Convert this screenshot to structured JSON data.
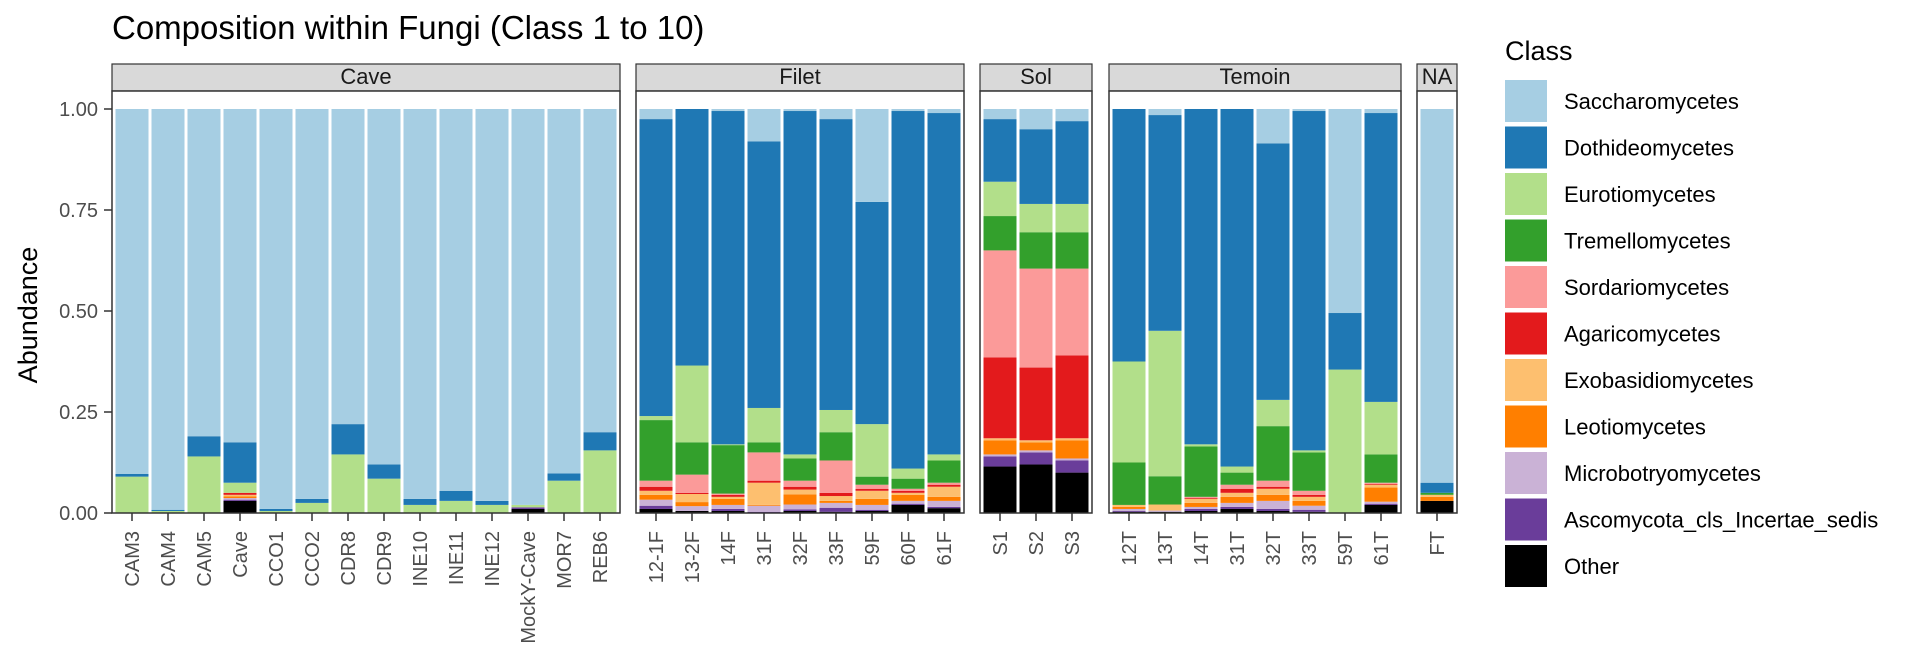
{
  "chart_data": {
    "type": "bar",
    "stacked": true,
    "title": "Composition within Fungi (Class 1 to 10)",
    "xlabel": "",
    "ylabel": "Abundance",
    "ylim": [
      0,
      1.05
    ],
    "yticks": [
      0,
      0.25,
      0.5,
      0.75,
      1.0
    ],
    "ytick_labels": [
      "0.00",
      "0.25",
      "0.50",
      "0.75",
      "1.00"
    ],
    "grid": false,
    "legend": {
      "title": "Class",
      "position": "right",
      "entries": [
        {
          "name": "Saccharomycetes",
          "color": "#a6cee3"
        },
        {
          "name": "Dothideomycetes",
          "color": "#1f78b4"
        },
        {
          "name": "Eurotiomycetes",
          "color": "#b2df8a"
        },
        {
          "name": "Tremellomycetes",
          "color": "#33a02c"
        },
        {
          "name": "Sordariomycetes",
          "color": "#fb9a99"
        },
        {
          "name": "Agaricomycetes",
          "color": "#e31a1c"
        },
        {
          "name": "Exobasidiomycetes",
          "color": "#fdbf6f"
        },
        {
          "name": "Leotiomycetes",
          "color": "#ff7f00"
        },
        {
          "name": "Microbotryomycetes",
          "color": "#cab2d6"
        },
        {
          "name": "Ascomycota_cls_Incertae_sedis",
          "color": "#6a3d9a"
        },
        {
          "name": "Other",
          "color": "#000000"
        }
      ]
    },
    "stack_order_bottom_to_top": [
      "Other",
      "Ascomycota_cls_Incertae_sedis",
      "Microbotryomycetes",
      "Leotiomycetes",
      "Exobasidiomycetes",
      "Agaricomycetes",
      "Sordariomycetes",
      "Tremellomycetes",
      "Eurotiomycetes",
      "Dothideomycetes",
      "Saccharomycetes"
    ],
    "facets": [
      {
        "name": "Cave",
        "samples": [
          {
            "label": "CAM3",
            "values": {
              "Other": 0.0,
              "Eurotiomycetes": 0.09,
              "Dothideomycetes": 0.007,
              "Saccharomycetes": 0.903
            }
          },
          {
            "label": "CAM4",
            "values": {
              "Other": 0.0,
              "Eurotiomycetes": 0.005,
              "Dothideomycetes": 0.003,
              "Saccharomycetes": 0.992
            }
          },
          {
            "label": "CAM5",
            "values": {
              "Other": 0.0,
              "Eurotiomycetes": 0.14,
              "Dothideomycetes": 0.05,
              "Saccharomycetes": 0.81
            }
          },
          {
            "label": "Cave",
            "values": {
              "Other": 0.03,
              "Ascomycota_cls_Incertae_sedis": 0.003,
              "Microbotryomycetes": 0.004,
              "Leotiomycetes": 0.004,
              "Exobasidiomycetes": 0.004,
              "Agaricomycetes": 0.005,
              "Eurotiomycetes": 0.025,
              "Dothideomycetes": 0.1,
              "Saccharomycetes": 0.825
            }
          },
          {
            "label": "CCO1",
            "values": {
              "Eurotiomycetes": 0.005,
              "Dothideomycetes": 0.005,
              "Saccharomycetes": 0.99
            }
          },
          {
            "label": "CCO2",
            "values": {
              "Eurotiomycetes": 0.025,
              "Dothideomycetes": 0.01,
              "Saccharomycetes": 0.965
            }
          },
          {
            "label": "CDR8",
            "values": {
              "Eurotiomycetes": 0.145,
              "Dothideomycetes": 0.075,
              "Saccharomycetes": 0.78
            }
          },
          {
            "label": "CDR9",
            "values": {
              "Eurotiomycetes": 0.085,
              "Dothideomycetes": 0.035,
              "Saccharomycetes": 0.88
            }
          },
          {
            "label": "INE10",
            "values": {
              "Eurotiomycetes": 0.02,
              "Dothideomycetes": 0.015,
              "Saccharomycetes": 0.965
            }
          },
          {
            "label": "INE11",
            "values": {
              "Eurotiomycetes": 0.03,
              "Dothideomycetes": 0.025,
              "Saccharomycetes": 0.945
            }
          },
          {
            "label": "INE12",
            "values": {
              "Eurotiomycetes": 0.02,
              "Dothideomycetes": 0.01,
              "Saccharomycetes": 0.97
            }
          },
          {
            "label": "MockY-Cave",
            "values": {
              "Other": 0.01,
              "Ascomycota_cls_Incertae_sedis": 0.004,
              "Eurotiomycetes": 0.006,
              "Saccharomycetes": 0.98
            }
          },
          {
            "label": "MOR7",
            "values": {
              "Eurotiomycetes": 0.08,
              "Dothideomycetes": 0.018,
              "Saccharomycetes": 0.902
            }
          },
          {
            "label": "REB6",
            "values": {
              "Eurotiomycetes": 0.155,
              "Dothideomycetes": 0.045,
              "Saccharomycetes": 0.8
            }
          }
        ]
      },
      {
        "name": "Filet",
        "samples": [
          {
            "label": "12-1F",
            "values": {
              "Other": 0.01,
              "Ascomycota_cls_Incertae_sedis": 0.008,
              "Microbotryomycetes": 0.015,
              "Leotiomycetes": 0.012,
              "Exobasidiomycetes": 0.01,
              "Agaricomycetes": 0.01,
              "Sordariomycetes": 0.015,
              "Tremellomycetes": 0.15,
              "Eurotiomycetes": 0.01,
              "Dothideomycetes": 0.735,
              "Saccharomycetes": 0.025
            }
          },
          {
            "label": "13-2F",
            "values": {
              "Other": 0.005,
              "Microbotryomycetes": 0.012,
              "Leotiomycetes": 0.01,
              "Exobasidiomycetes": 0.02,
              "Agaricomycetes": 0.003,
              "Sordariomycetes": 0.045,
              "Tremellomycetes": 0.08,
              "Eurotiomycetes": 0.19,
              "Dothideomycetes": 0.635
            }
          },
          {
            "label": "14F",
            "values": {
              "Other": 0.005,
              "Ascomycota_cls_Incertae_sedis": 0.005,
              "Microbotryomycetes": 0.01,
              "Leotiomycetes": 0.015,
              "Exobasidiomycetes": 0.005,
              "Agaricomycetes": 0.005,
              "Sordariomycetes": 0.003,
              "Tremellomycetes": 0.12,
              "Eurotiomycetes": 0.002,
              "Dothideomycetes": 0.825,
              "Saccharomycetes": 0.005
            }
          },
          {
            "label": "31F",
            "values": {
              "Other": 0.0,
              "Ascomycota_cls_Incertae_sedis": 0.003,
              "Microbotryomycetes": 0.015,
              "Leotiomycetes": 0.002,
              "Exobasidiomycetes": 0.055,
              "Agaricomycetes": 0.005,
              "Sordariomycetes": 0.07,
              "Tremellomycetes": 0.025,
              "Eurotiomycetes": 0.085,
              "Dothideomycetes": 0.66,
              "Saccharomycetes": 0.08
            }
          },
          {
            "label": "32F",
            "values": {
              "Other": 0.005,
              "Ascomycota_cls_Incertae_sedis": 0.004,
              "Microbotryomycetes": 0.012,
              "Leotiomycetes": 0.025,
              "Exobasidiomycetes": 0.012,
              "Agaricomycetes": 0.007,
              "Sordariomycetes": 0.015,
              "Tremellomycetes": 0.055,
              "Eurotiomycetes": 0.01,
              "Dothideomycetes": 0.85,
              "Saccharomycetes": 0.005
            }
          },
          {
            "label": "33F",
            "values": {
              "Other": 0.003,
              "Ascomycota_cls_Incertae_sedis": 0.01,
              "Microbotryomycetes": 0.012,
              "Leotiomycetes": 0.005,
              "Exobasidiomycetes": 0.012,
              "Agaricomycetes": 0.008,
              "Sordariomycetes": 0.08,
              "Tremellomycetes": 0.07,
              "Eurotiomycetes": 0.055,
              "Dothideomycetes": 0.72,
              "Saccharomycetes": 0.025
            }
          },
          {
            "label": "59F",
            "values": {
              "Other": 0.005,
              "Ascomycota_cls_Incertae_sedis": 0.003,
              "Microbotryomycetes": 0.012,
              "Leotiomycetes": 0.015,
              "Exobasidiomycetes": 0.02,
              "Agaricomycetes": 0.005,
              "Sordariomycetes": 0.01,
              "Tremellomycetes": 0.02,
              "Eurotiomycetes": 0.13,
              "Dothideomycetes": 0.55,
              "Saccharomycetes": 0.23
            }
          },
          {
            "label": "60F",
            "values": {
              "Other": 0.02,
              "Ascomycota_cls_Incertae_sedis": 0.003,
              "Microbotryomycetes": 0.007,
              "Leotiomycetes": 0.015,
              "Exobasidiomycetes": 0.005,
              "Agaricomycetes": 0.005,
              "Sordariomycetes": 0.005,
              "Tremellomycetes": 0.025,
              "Eurotiomycetes": 0.025,
              "Dothideomycetes": 0.885,
              "Saccharomycetes": 0.005
            }
          },
          {
            "label": "61F",
            "values": {
              "Other": 0.012,
              "Ascomycota_cls_Incertae_sedis": 0.003,
              "Microbotryomycetes": 0.015,
              "Leotiomycetes": 0.01,
              "Exobasidiomycetes": 0.025,
              "Agaricomycetes": 0.005,
              "Sordariomycetes": 0.005,
              "Tremellomycetes": 0.055,
              "Eurotiomycetes": 0.015,
              "Dothideomycetes": 0.845,
              "Saccharomycetes": 0.01
            }
          }
        ]
      },
      {
        "name": "Sol",
        "samples": [
          {
            "label": "S1",
            "values": {
              "Other": 0.115,
              "Ascomycota_cls_Incertae_sedis": 0.025,
              "Microbotryomycetes": 0.005,
              "Leotiomycetes": 0.035,
              "Exobasidiomycetes": 0.005,
              "Agaricomycetes": 0.2,
              "Sordariomycetes": 0.265,
              "Tremellomycetes": 0.085,
              "Eurotiomycetes": 0.085,
              "Dothideomycetes": 0.155,
              "Saccharomycetes": 0.025
            }
          },
          {
            "label": "S2",
            "values": {
              "Other": 0.12,
              "Ascomycota_cls_Incertae_sedis": 0.03,
              "Microbotryomycetes": 0.005,
              "Leotiomycetes": 0.02,
              "Exobasidiomycetes": 0.005,
              "Agaricomycetes": 0.18,
              "Sordariomycetes": 0.245,
              "Tremellomycetes": 0.09,
              "Eurotiomycetes": 0.07,
              "Dothideomycetes": 0.185,
              "Saccharomycetes": 0.05
            }
          },
          {
            "label": "S3",
            "values": {
              "Other": 0.1,
              "Ascomycota_cls_Incertae_sedis": 0.03,
              "Microbotryomycetes": 0.005,
              "Leotiomycetes": 0.045,
              "Exobasidiomycetes": 0.005,
              "Agaricomycetes": 0.205,
              "Sordariomycetes": 0.215,
              "Tremellomycetes": 0.09,
              "Eurotiomycetes": 0.07,
              "Dothideomycetes": 0.205,
              "Saccharomycetes": 0.03
            }
          }
        ]
      },
      {
        "name": "Temoin",
        "samples": [
          {
            "label": "12T",
            "values": {
              "Other": 0.003,
              "Ascomycota_cls_Incertae_sedis": 0.002,
              "Microbotryomycetes": 0.005,
              "Leotiomycetes": 0.005,
              "Exobasidiomycetes": 0.005,
              "Tremellomycetes": 0.105,
              "Eurotiomycetes": 0.25,
              "Dothideomycetes": 0.625
            }
          },
          {
            "label": "13T",
            "values": {
              "Other": 0.003,
              "Microbotryomycetes": 0.003,
              "Exobasidiomycetes": 0.015,
              "Tremellomycetes": 0.07,
              "Eurotiomycetes": 0.36,
              "Dothideomycetes": 0.534,
              "Saccharomycetes": 0.015
            }
          },
          {
            "label": "14T",
            "values": {
              "Other": 0.005,
              "Ascomycota_cls_Incertae_sedis": 0.005,
              "Microbotryomycetes": 0.005,
              "Leotiomycetes": 0.01,
              "Exobasidiomycetes": 0.01,
              "Agaricomycetes": 0.002,
              "Sordariomycetes": 0.003,
              "Tremellomycetes": 0.125,
              "Eurotiomycetes": 0.005,
              "Dothideomycetes": 0.83
            }
          },
          {
            "label": "31T",
            "values": {
              "Other": 0.01,
              "Ascomycota_cls_Incertae_sedis": 0.005,
              "Microbotryomycetes": 0.01,
              "Leotiomycetes": 0.015,
              "Exobasidiomycetes": 0.01,
              "Agaricomycetes": 0.01,
              "Sordariomycetes": 0.01,
              "Tremellomycetes": 0.03,
              "Eurotiomycetes": 0.015,
              "Dothideomycetes": 0.885
            }
          },
          {
            "label": "32T",
            "values": {
              "Other": 0.005,
              "Ascomycota_cls_Incertae_sedis": 0.005,
              "Microbotryomycetes": 0.02,
              "Leotiomycetes": 0.015,
              "Exobasidiomycetes": 0.015,
              "Agaricomycetes": 0.005,
              "Sordariomycetes": 0.015,
              "Tremellomycetes": 0.135,
              "Eurotiomycetes": 0.065,
              "Dothideomycetes": 0.635,
              "Saccharomycetes": 0.085
            }
          },
          {
            "label": "33T",
            "values": {
              "Other": 0.003,
              "Ascomycota_cls_Incertae_sedis": 0.005,
              "Microbotryomycetes": 0.01,
              "Leotiomycetes": 0.012,
              "Exobasidiomycetes": 0.01,
              "Agaricomycetes": 0.005,
              "Sordariomycetes": 0.01,
              "Tremellomycetes": 0.095,
              "Eurotiomycetes": 0.005,
              "Dothideomycetes": 0.84,
              "Saccharomycetes": 0.005
            }
          },
          {
            "label": "59T",
            "values": {
              "Eurotiomycetes": 0.355,
              "Dothideomycetes": 0.14,
              "Saccharomycetes": 0.505
            }
          },
          {
            "label": "61T",
            "values": {
              "Other": 0.02,
              "Ascomycota_cls_Incertae_sedis": 0.003,
              "Microbotryomycetes": 0.005,
              "Leotiomycetes": 0.035,
              "Exobasidiomycetes": 0.007,
              "Agaricomycetes": 0.002,
              "Sordariomycetes": 0.003,
              "Tremellomycetes": 0.07,
              "Eurotiomycetes": 0.13,
              "Dothideomycetes": 0.715,
              "Saccharomycetes": 0.01
            }
          }
        ]
      },
      {
        "name": "NA",
        "samples": [
          {
            "label": "FT",
            "values": {
              "Other": 0.03,
              "Leotiomycetes": 0.01,
              "Exobasidiomycetes": 0.005,
              "Tremellomycetes": 0.005,
              "Dothideomycetes": 0.025,
              "Saccharomycetes": 0.925
            }
          }
        ]
      }
    ]
  }
}
